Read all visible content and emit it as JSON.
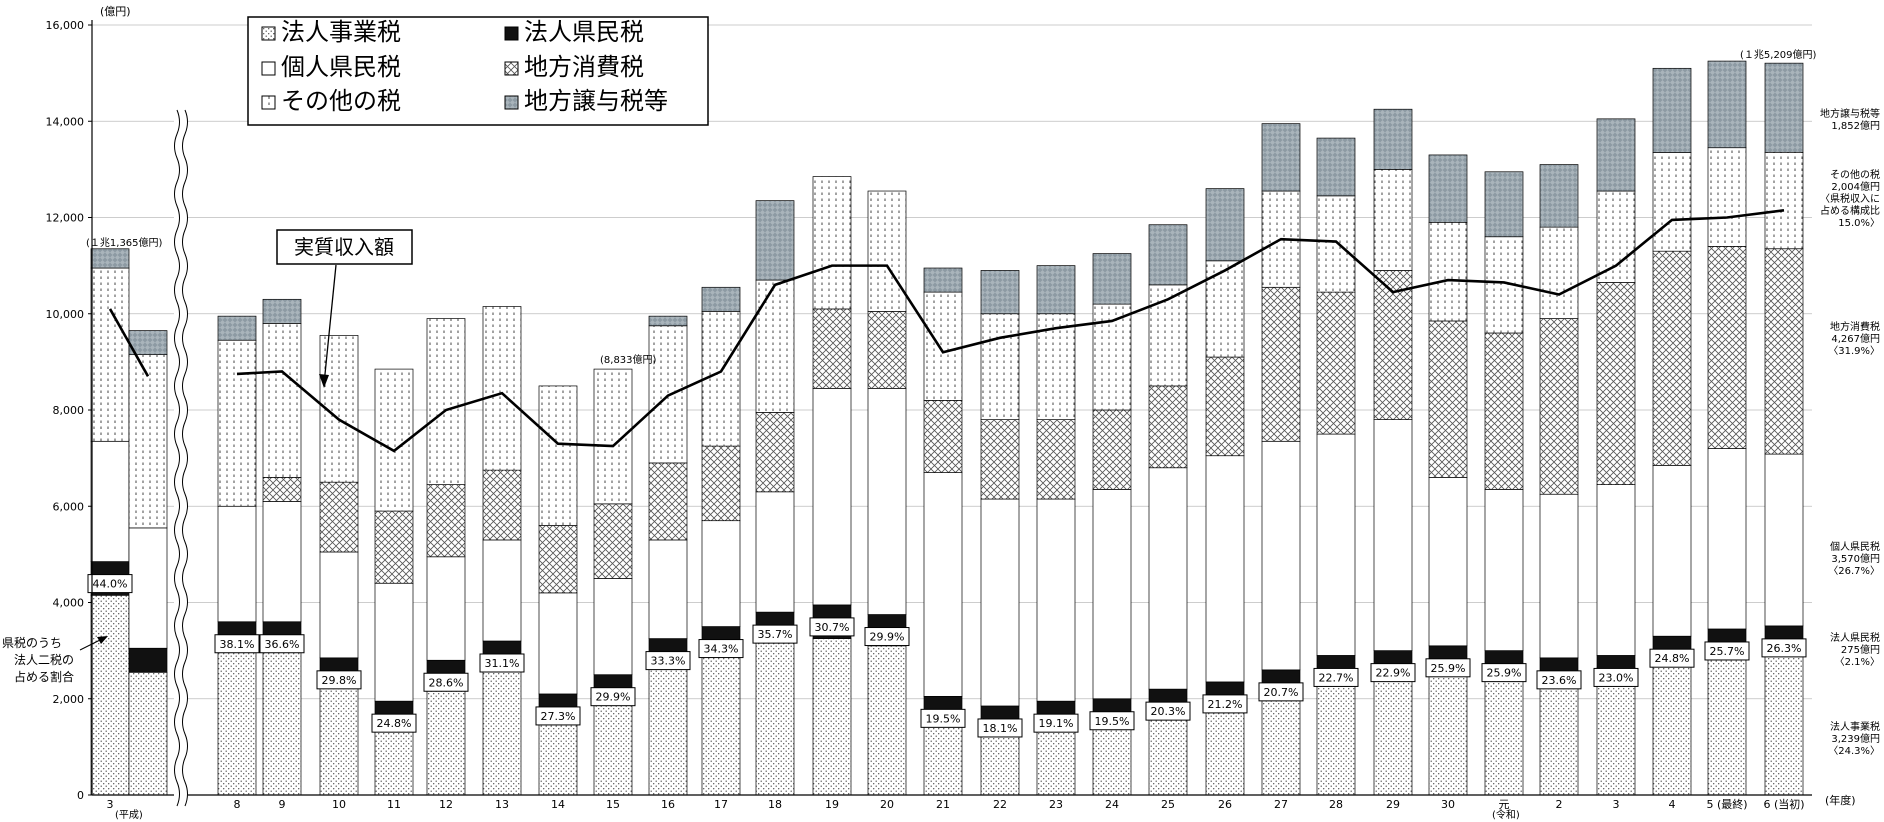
{
  "chart_data": {
    "type": "bar",
    "stacked": true,
    "yunit": "(億円)",
    "xunit": "(年度)",
    "ylim": [
      0,
      16000
    ],
    "yticks": [
      "0",
      "2,000",
      "4,000",
      "6,000",
      "8,000",
      "10,000",
      "12,000",
      "14,000",
      "16,000"
    ],
    "era_labels": {
      "heisei": "(平成)",
      "reiwa": "(令和)"
    },
    "categories": [
      "3",
      "",
      "8",
      "9",
      "10",
      "11",
      "12",
      "13",
      "14",
      "15",
      "16",
      "17",
      "18",
      "19",
      "20",
      "21",
      "22",
      "23",
      "24",
      "25",
      "26",
      "27",
      "28",
      "29",
      "30",
      "元",
      "2",
      "3",
      "4",
      "5 (最終)",
      "6 (当初)"
    ],
    "series": [
      {
        "name": "法人事業税",
        "values": [
          4150,
          2550,
          3000,
          3050,
          2350,
          1550,
          2300,
          2650,
          1650,
          2050,
          2700,
          2950,
          3200,
          3250,
          3100,
          1600,
          1450,
          1500,
          1500,
          1700,
          1800,
          2100,
          2450,
          2550,
          2650,
          2550,
          2500,
          2650,
          3000,
          3150,
          3239
        ]
      },
      {
        "name": "法人県民税",
        "values": [
          700,
          500,
          600,
          550,
          500,
          400,
          500,
          550,
          450,
          450,
          550,
          550,
          600,
          700,
          650,
          450,
          400,
          450,
          500,
          500,
          550,
          500,
          450,
          450,
          450,
          450,
          350,
          250,
          300,
          300,
          275
        ]
      },
      {
        "name": "個人県民税",
        "values": [
          2500,
          2500,
          2400,
          2500,
          2200,
          2450,
          2150,
          2100,
          2100,
          2000,
          2050,
          2200,
          2500,
          4500,
          4700,
          4650,
          4300,
          4200,
          4350,
          4600,
          4700,
          4750,
          4600,
          4800,
          3500,
          3350,
          3400,
          3550,
          3550,
          3750,
          3570
        ]
      },
      {
        "name": "地方消費税",
        "values": [
          0,
          0,
          0,
          500,
          1450,
          1500,
          1500,
          1450,
          1400,
          1550,
          1600,
          1550,
          1650,
          1650,
          1600,
          1500,
          1650,
          1650,
          1650,
          1700,
          2050,
          3200,
          2950,
          3100,
          3250,
          3250,
          3650,
          4200,
          4450,
          4200,
          4267
        ]
      },
      {
        "name": "その他の税",
        "values": [
          3600,
          3600,
          3450,
          3200,
          3050,
          2950,
          3450,
          3400,
          2900,
          2800,
          2850,
          2800,
          2750,
          2750,
          2500,
          2250,
          2200,
          2200,
          2200,
          2100,
          2000,
          2000,
          2000,
          2100,
          2050,
          2000,
          1900,
          1900,
          2050,
          2050,
          2004
        ]
      },
      {
        "name": "地方譲与税等",
        "values": [
          400,
          500,
          500,
          500,
          0,
          0,
          0,
          0,
          0,
          0,
          200,
          500,
          1650,
          0,
          0,
          500,
          900,
          1000,
          1050,
          1250,
          1500,
          1400,
          1200,
          1250,
          1400,
          1350,
          1300,
          1500,
          1750,
          1800,
          1852
        ]
      }
    ],
    "line": {
      "name": "実質収入額",
      "values": [
        10100,
        8700,
        8750,
        8800,
        7800,
        7150,
        8000,
        8350,
        7300,
        7250,
        8300,
        8800,
        10600,
        11000,
        11000,
        9200,
        9500,
        9700,
        9850,
        10300,
        10900,
        11550,
        11500,
        10450,
        10700,
        10650,
        10400,
        11000,
        11950,
        12000,
        12150
      ]
    },
    "ratio_labels": [
      "44.0%",
      "",
      "38.1%",
      "36.6%",
      "29.8%",
      "24.8%",
      "28.6%",
      "31.1%",
      "27.3%",
      "29.9%",
      "33.3%",
      "34.3%",
      "35.7%",
      "30.7%",
      "29.9%",
      "19.5%",
      "18.1%",
      "19.1%",
      "19.5%",
      "20.3%",
      "21.2%",
      "20.7%",
      "22.7%",
      "22.9%",
      "25.9%",
      "25.9%",
      "23.6%",
      "23.0%",
      "24.8%",
      "25.7%",
      "26.3%"
    ],
    "legend": [
      "法人事業税",
      "法人県民税",
      "個人県民税",
      "地方消費税",
      "その他の税",
      "地方譲与税等"
    ],
    "annotations": {
      "total_first": "(１兆1,365億円)",
      "total_mid": "(8,833億円)",
      "total_last": "(１兆5,209億円)",
      "callout_line": "実質収入額",
      "ratio_note": [
        "県税のうち",
        "法人二税の",
        "占める割合"
      ],
      "right_notes": [
        {
          "lines": [
            "地方譲与税等",
            "1,852億円"
          ]
        },
        {
          "lines": [
            "その他の税",
            "2,004億円",
            "〈県税収入に",
            "占める構成比",
            "15.0%〉"
          ]
        },
        {
          "lines": [
            "地方消費税",
            "4,267億円",
            "〈31.9%〉"
          ]
        },
        {
          "lines": [
            "個人県民税",
            "3,570億円",
            "〈26.7%〉"
          ]
        },
        {
          "lines": [
            "法人県民税",
            "275億円",
            "〈2.1%〉"
          ]
        },
        {
          "lines": [
            "法人事業税",
            "3,239億円",
            "〈24.3%〉"
          ]
        }
      ]
    },
    "colors": {
      "corp_resident": "#111111",
      "transfer": "#8d9aa3",
      "line": "#000000"
    }
  }
}
